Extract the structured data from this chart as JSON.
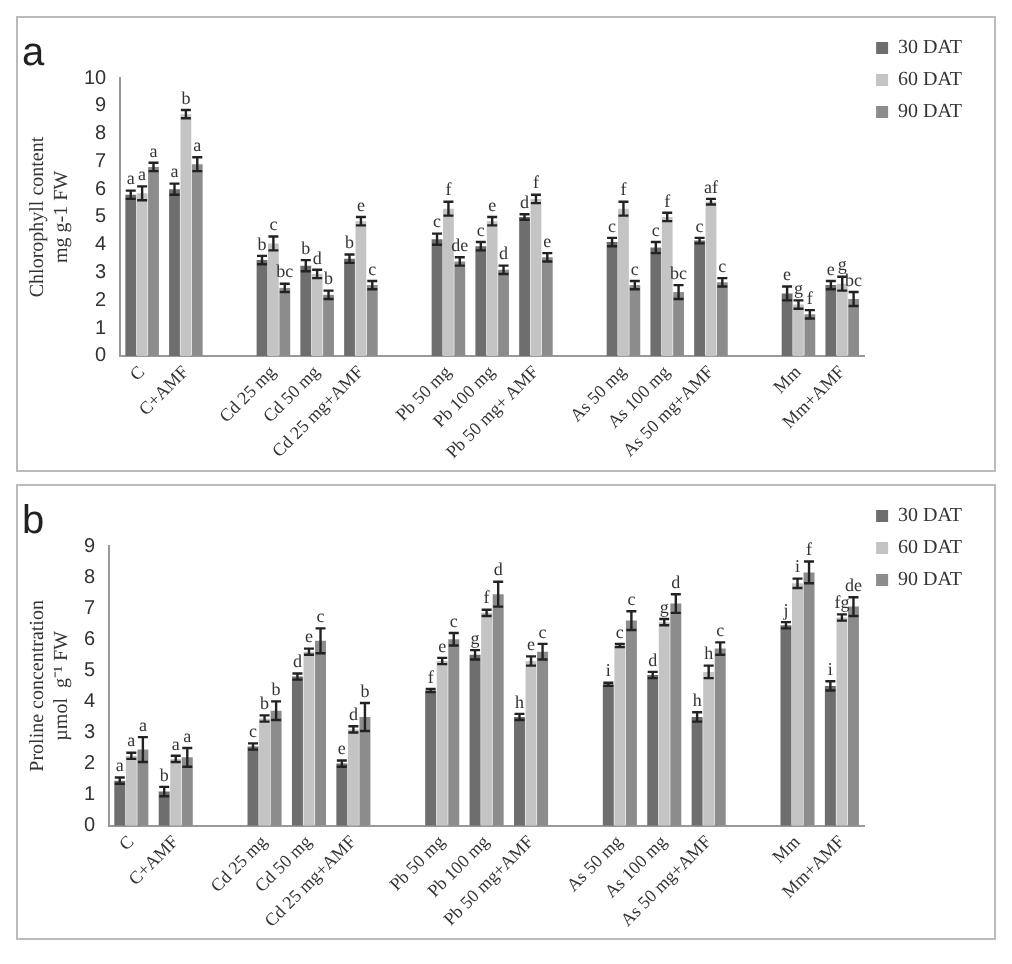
{
  "chart_data": [
    {
      "type": "bar",
      "title": "a",
      "ylabel": "Chlorophyll content\nmg g-1 FW",
      "categories": [
        "C",
        "C+AMF",
        null,
        "Cd 25 mg",
        "Cd 50 mg",
        "Cd 25 mg+AMF",
        null,
        "Pb 50 mg",
        "Pb 100 mg",
        "Pb 50 mg+ AMF",
        null,
        "As 50 mg",
        "As 100 mg",
        "As 50 mg+AMF",
        null,
        "Mm",
        "Mm+AMF"
      ],
      "ylim": [
        0,
        10
      ],
      "yticks": [
        0,
        1,
        2,
        3,
        4,
        5,
        6,
        7,
        8,
        9,
        10
      ],
      "legend": "top right",
      "series": [
        {
          "name": "30 DAT",
          "color": "#6e6e6e",
          "values": [
            5.8,
            6.0,
            null,
            3.45,
            3.25,
            3.5,
            null,
            4.2,
            3.95,
            5.0,
            null,
            4.1,
            3.9,
            4.15,
            null,
            2.25,
            2.55
          ],
          "errors": [
            0.15,
            0.2,
            null,
            0.15,
            0.2,
            0.15,
            null,
            0.2,
            0.15,
            0.1,
            null,
            0.15,
            0.2,
            0.1,
            null,
            0.25,
            0.15
          ],
          "value_labels": [
            "a",
            "a",
            null,
            "b",
            "b",
            "b",
            null,
            "c",
            "c",
            "d",
            null,
            "c",
            "c",
            "c",
            null,
            "e",
            "e"
          ]
        },
        {
          "name": "60 DAT",
          "color": "#c4c4c4",
          "values": [
            5.85,
            8.7,
            null,
            4.05,
            2.95,
            4.85,
            null,
            5.3,
            4.85,
            5.65,
            null,
            5.3,
            5.0,
            5.55,
            null,
            1.85,
            2.6
          ],
          "errors": [
            0.25,
            0.15,
            null,
            0.25,
            0.15,
            0.15,
            null,
            0.25,
            0.15,
            0.15,
            null,
            0.25,
            0.15,
            0.1,
            null,
            0.15,
            0.25
          ],
          "value_labels": [
            "a",
            "b",
            null,
            "c",
            "d",
            "e",
            null,
            "f",
            "e",
            "f",
            null,
            "f",
            "f",
            "af",
            null,
            "g",
            "g"
          ]
        },
        {
          "name": "90 DAT",
          "color": "#8c8c8c",
          "values": [
            6.8,
            6.9,
            null,
            2.45,
            2.2,
            2.55,
            null,
            3.4,
            3.1,
            3.55,
            null,
            2.55,
            2.3,
            2.65,
            null,
            1.5,
            2.05
          ],
          "errors": [
            0.15,
            0.25,
            null,
            0.15,
            0.15,
            0.15,
            null,
            0.15,
            0.15,
            0.15,
            null,
            0.15,
            0.25,
            0.15,
            null,
            0.15,
            0.25
          ],
          "value_labels": [
            "a",
            "a",
            null,
            "bc",
            "b",
            "c",
            null,
            "de",
            "d",
            "e",
            null,
            "c",
            "bc",
            "c",
            null,
            "f",
            "bc"
          ]
        }
      ]
    },
    {
      "type": "bar",
      "title": "b",
      "ylabel": "Proline concentration\nµmol  g⁻¹ FW",
      "categories": [
        "C",
        "C+AMF",
        null,
        "Cd 25 mg",
        "Cd 50 mg",
        "Cd 25 mg+AMF",
        null,
        "Pb 50 mg",
        "Pb 100 mg",
        "Pb 50 mg+AMF",
        null,
        "As 50 mg",
        "As 100 mg",
        "As 50 mg+AMF",
        null,
        "Mm",
        "Mm+AMF"
      ],
      "ylim": [
        0,
        9
      ],
      "yticks": [
        0,
        1,
        2,
        3,
        4,
        5,
        6,
        7,
        8,
        9
      ],
      "legend": "top right",
      "series": [
        {
          "name": "30 DAT",
          "color": "#6e6e6e",
          "values": [
            1.45,
            1.1,
            null,
            2.55,
            4.8,
            2.0,
            null,
            4.35,
            5.5,
            3.5,
            null,
            4.55,
            4.85,
            3.5,
            null,
            6.45,
            4.5
          ],
          "errors": [
            0.1,
            0.15,
            null,
            0.1,
            0.1,
            0.1,
            null,
            0.05,
            0.15,
            0.1,
            null,
            0.05,
            0.1,
            0.15,
            null,
            0.1,
            0.15
          ],
          "value_labels": [
            "a",
            "b",
            null,
            "c",
            "d",
            "e",
            null,
            "f",
            "g",
            "h",
            null,
            "i",
            "d",
            "h",
            null,
            "j",
            "i"
          ]
        },
        {
          "name": "60 DAT",
          "color": "#c4c4c4",
          "values": [
            2.25,
            2.15,
            null,
            3.45,
            5.6,
            3.1,
            null,
            5.3,
            6.85,
            5.3,
            null,
            5.8,
            6.55,
            4.95,
            null,
            7.8,
            6.7
          ],
          "errors": [
            0.1,
            0.1,
            null,
            0.1,
            0.1,
            0.1,
            null,
            0.1,
            0.1,
            0.15,
            null,
            0.05,
            0.1,
            0.2,
            null,
            0.15,
            0.1
          ],
          "value_labels": [
            "a",
            "a",
            null,
            "b",
            "e",
            "d",
            null,
            "e",
            "f",
            "e",
            null,
            "c",
            "g",
            "h",
            null,
            "i",
            "fg"
          ]
        },
        {
          "name": "90 DAT",
          "color": "#8c8c8c",
          "values": [
            2.45,
            2.2,
            null,
            3.7,
            5.95,
            3.5,
            null,
            6.0,
            7.45,
            5.6,
            null,
            6.6,
            7.15,
            5.7,
            null,
            8.15,
            7.05
          ],
          "errors": [
            0.4,
            0.3,
            null,
            0.3,
            0.4,
            0.45,
            null,
            0.2,
            0.4,
            0.25,
            null,
            0.3,
            0.3,
            0.2,
            null,
            0.35,
            0.3
          ],
          "value_labels": [
            "a",
            "a",
            null,
            "b",
            "c",
            "b",
            null,
            "c",
            "d",
            "c",
            null,
            "c",
            "d",
            "c",
            null,
            "f",
            "de"
          ]
        }
      ]
    }
  ]
}
